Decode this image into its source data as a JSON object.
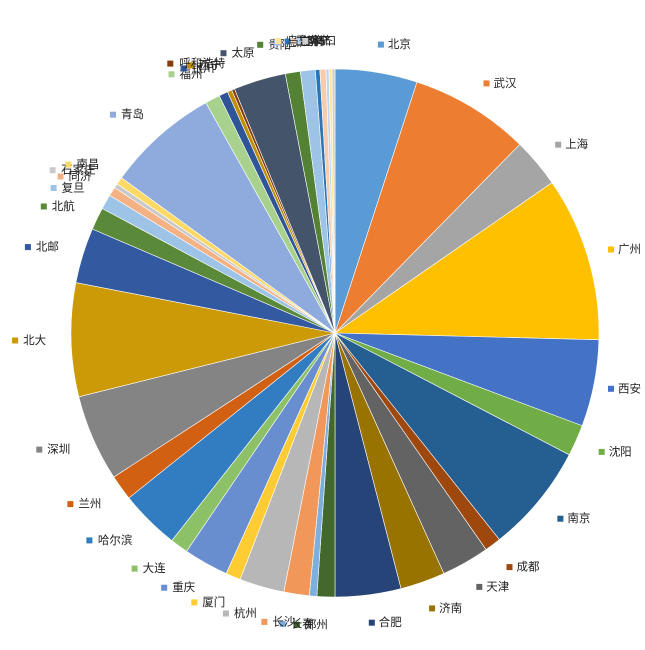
{
  "chart_data": {
    "type": "pie",
    "title": "",
    "slices": [
      {
        "label": "北京",
        "value": 5.5,
        "color": "#5b9bd5"
      },
      {
        "label": "武汉",
        "value": 8.0,
        "color": "#ed7d31"
      },
      {
        "label": "上海",
        "value": 3.3,
        "color": "#a5a5a5"
      },
      {
        "label": "广州",
        "value": 11.0,
        "color": "#ffc000"
      },
      {
        "label": "西安",
        "value": 5.8,
        "color": "#4472c4"
      },
      {
        "label": "沈阳",
        "value": 2.1,
        "color": "#70ad47"
      },
      {
        "label": "南京",
        "value": 7.3,
        "color": "#255e91"
      },
      {
        "label": "成都",
        "value": 1.1,
        "color": "#9e480e"
      },
      {
        "label": "天津",
        "value": 3.2,
        "color": "#636363"
      },
      {
        "label": "济南",
        "value": 3.0,
        "color": "#997300"
      },
      {
        "label": "合肥",
        "value": 4.4,
        "color": "#264478"
      },
      {
        "label": "郑州",
        "value": 1.2,
        "color": "#43682b"
      },
      {
        "label": "长春",
        "value": 0.5,
        "color": "#7cafdd"
      },
      {
        "label": "长沙",
        "value": 1.7,
        "color": "#f1975a"
      },
      {
        "label": "杭州",
        "value": 3.0,
        "color": "#b7b7b7"
      },
      {
        "label": "厦门",
        "value": 1.0,
        "color": "#ffcd33"
      },
      {
        "label": "重庆",
        "value": 3.0,
        "color": "#698ed0"
      },
      {
        "label": "大连",
        "value": 1.2,
        "color": "#8cc168"
      },
      {
        "label": "哈尔滨",
        "value": 4.0,
        "color": "#327dc2"
      },
      {
        "label": "兰州",
        "value": 1.7,
        "color": "#d26012"
      },
      {
        "label": "深圳",
        "value": 5.8,
        "color": "#848484"
      },
      {
        "label": "北大",
        "value": 7.6,
        "color": "#cc9a06"
      },
      {
        "label": "北邮",
        "value": 3.7,
        "color": "#335aa1"
      },
      {
        "label": "北航",
        "value": 1.5,
        "color": "#5a8a39"
      },
      {
        "label": "复旦",
        "value": 1.0,
        "color": "#9dc3e6"
      },
      {
        "label": "同济",
        "value": 0.6,
        "color": "#f4b183"
      },
      {
        "label": "石家庄",
        "value": 0.3,
        "color": "#c9c9c9"
      },
      {
        "label": "南昌",
        "value": 0.5,
        "color": "#ffd966"
      },
      {
        "label": "青岛",
        "value": 7.5,
        "color": "#8faadc"
      },
      {
        "label": "福州",
        "value": 1.0,
        "color": "#a9d18e"
      },
      {
        "label": "银川",
        "value": 0.6,
        "color": "#2f5597"
      },
      {
        "label": "西宁",
        "value": 0.3,
        "color": "#bf8f00"
      },
      {
        "label": "呼和浩特",
        "value": 0.2,
        "color": "#843c0c"
      },
      {
        "label": "太原",
        "value": 3.5,
        "color": "#44546a"
      },
      {
        "label": "贵阳",
        "value": 1.0,
        "color": "#548235"
      },
      {
        "label": "拉萨",
        "value": 1.0,
        "color": "#9dc3e6"
      },
      {
        "label": "昆明",
        "value": 0.3,
        "color": "#2e75b6"
      },
      {
        "label": "桂林",
        "value": 0.4,
        "color": "#f8cbad"
      },
      {
        "label": "南宁",
        "value": 0.2,
        "color": "#bdd7ee"
      },
      {
        "label": "乌鲁木齐",
        "value": 0.2,
        "color": "#ffe699"
      },
      {
        "label": "海口",
        "value": 0.2,
        "color": "#d0cece"
      }
    ],
    "legend": "labels around pie with color markers",
    "start_angle_deg": 0,
    "direction": "clockwise"
  }
}
